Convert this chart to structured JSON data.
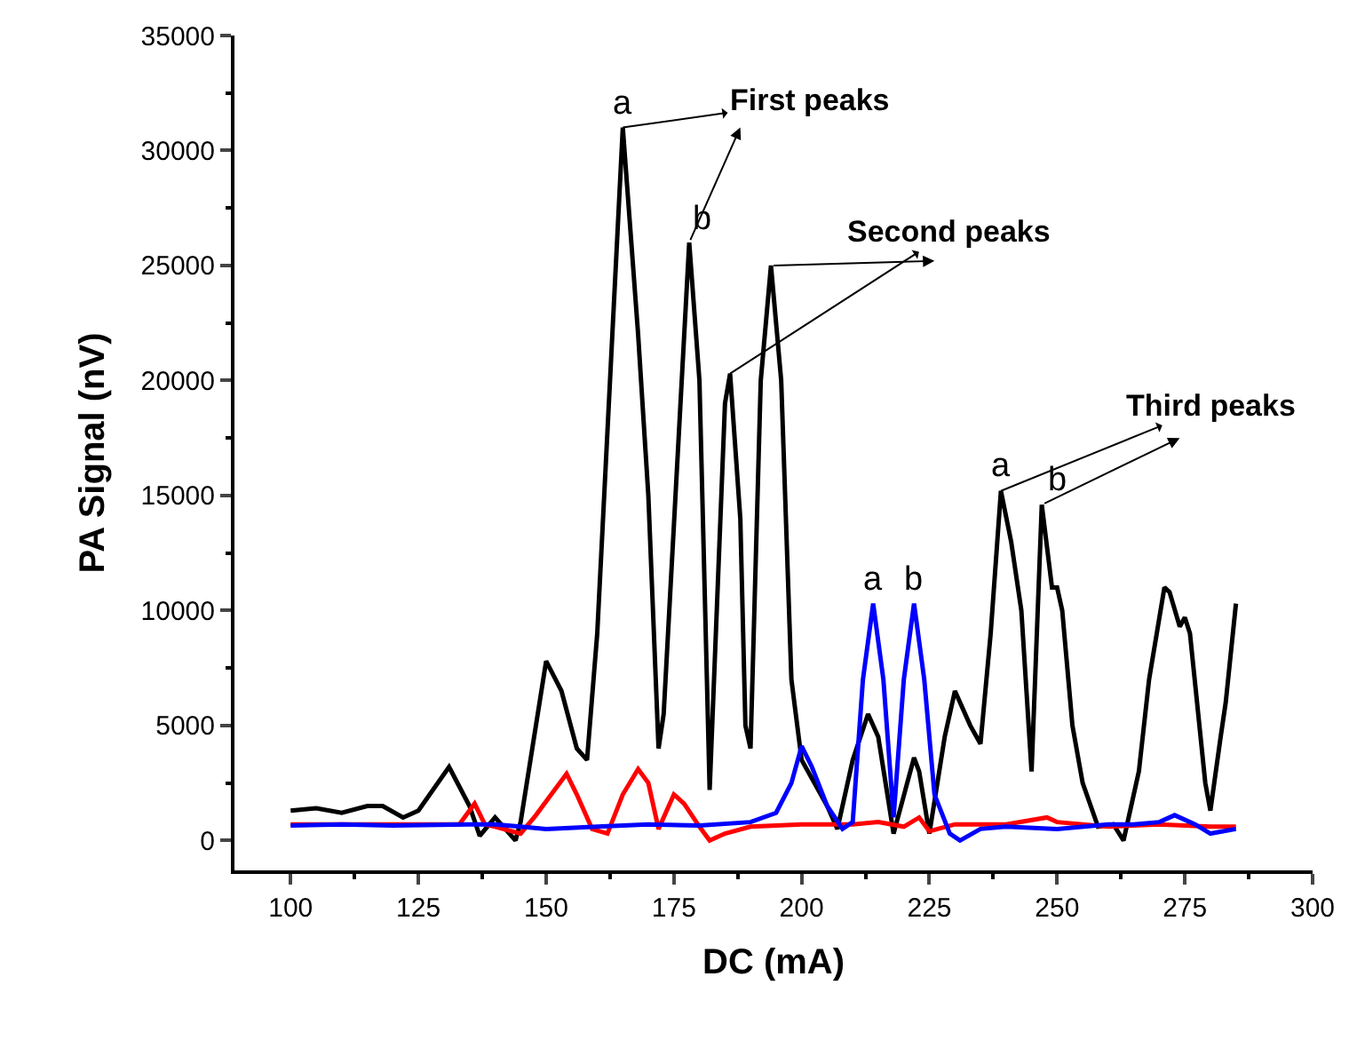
{
  "chart_data": {
    "type": "line",
    "xlabel": "DC (mA)",
    "ylabel": "PA Signal (nV)",
    "xlim": [
      89,
      300
    ],
    "xticks": [
      100,
      125,
      150,
      175,
      200,
      225,
      250,
      275,
      300
    ],
    "ylim": [
      -1300,
      35000
    ],
    "yticks": [
      0,
      5000,
      10000,
      15000,
      20000,
      25000,
      30000,
      35000
    ],
    "marker": "none",
    "line_style": "solid",
    "series": [
      {
        "color": "#000000",
        "x": [
          100,
          105,
          110,
          115,
          118,
          122,
          125,
          131,
          135,
          137,
          140,
          144,
          145,
          150,
          153,
          156,
          158,
          160,
          165,
          168,
          170,
          172,
          173,
          178,
          180,
          182,
          185,
          186,
          188,
          189,
          190,
          192,
          194,
          196,
          198,
          200,
          205,
          207,
          210,
          213,
          215,
          218,
          222,
          223,
          225,
          228,
          230,
          233,
          235,
          237,
          239,
          241,
          243,
          245,
          247,
          249,
          250,
          251,
          253,
          255,
          258,
          261,
          263,
          266,
          268,
          271,
          272,
          274,
          275,
          276,
          279,
          280,
          282,
          283,
          285
        ],
        "values": [
          1300,
          1400,
          1200,
          1500,
          1500,
          1000,
          1300,
          3200,
          1500,
          200,
          1000,
          0,
          800,
          7800,
          6500,
          4000,
          3500,
          9000,
          31000,
          22000,
          15000,
          4000,
          5500,
          26000,
          20000,
          2200,
          19000,
          20300,
          14000,
          5000,
          4000,
          20000,
          25000,
          20000,
          7000,
          3500,
          1500,
          500,
          3500,
          5500,
          4500,
          300,
          3600,
          3000,
          300,
          4500,
          6500,
          5000,
          4200,
          9000,
          15200,
          13000,
          10000,
          3000,
          14600,
          11000,
          11000,
          10000,
          5000,
          2500,
          600,
          700,
          0,
          3000,
          7000,
          11000,
          10800,
          9300,
          9700,
          9000,
          2500,
          1300,
          4500,
          6000,
          10300
        ]
      },
      {
        "color": "#ff0000",
        "x": [
          100,
          110,
          120,
          133,
          136,
          138,
          140,
          145,
          148,
          151,
          154,
          156,
          159,
          162,
          165,
          168,
          170,
          172,
          175,
          177,
          180,
          182,
          185,
          190,
          200,
          210,
          215,
          220,
          223,
          225,
          230,
          240,
          248,
          250,
          260,
          270,
          280,
          285
        ],
        "values": [
          700,
          700,
          700,
          700,
          1600,
          700,
          600,
          300,
          1100,
          2000,
          2900,
          2000,
          500,
          300,
          2000,
          3100,
          2500,
          500,
          2000,
          1600,
          600,
          0,
          300,
          600,
          700,
          700,
          800,
          600,
          1000,
          400,
          700,
          700,
          1000,
          800,
          600,
          700,
          600,
          600
        ]
      },
      {
        "color": "#0000ff",
        "x": [
          100,
          110,
          120,
          135,
          140,
          145,
          150,
          160,
          170,
          180,
          190,
          195,
          198,
          200,
          202,
          205,
          208,
          210,
          212,
          214,
          216,
          218,
          220,
          222,
          224,
          226,
          229,
          231,
          235,
          240,
          250,
          260,
          265,
          270,
          273,
          277,
          280,
          285
        ],
        "values": [
          650,
          700,
          650,
          700,
          700,
          600,
          500,
          600,
          700,
          650,
          800,
          1200,
          2500,
          4100,
          3200,
          1500,
          500,
          800,
          7000,
          10300,
          7000,
          1000,
          7000,
          10300,
          7000,
          2000,
          300,
          0,
          500,
          600,
          500,
          700,
          700,
          800,
          1100,
          700,
          300,
          500
        ]
      }
    ],
    "annotations": [
      {
        "text": "a",
        "x": 165,
        "y": 31000
      },
      {
        "text": "b",
        "x": 178,
        "y": 26000
      },
      {
        "text": "First peaks",
        "x": 165,
        "y": 31000
      },
      {
        "text": "Second peaks",
        "x": 186,
        "y": 20300
      },
      {
        "text": "a",
        "x": 214,
        "y": 10300
      },
      {
        "text": "b",
        "x": 222,
        "y": 10300
      },
      {
        "text": "a",
        "x": 239,
        "y": 15200
      },
      {
        "text": "b",
        "x": 247,
        "y": 14600
      },
      {
        "text": "Third peaks",
        "x": 239,
        "y": 15200
      }
    ]
  }
}
